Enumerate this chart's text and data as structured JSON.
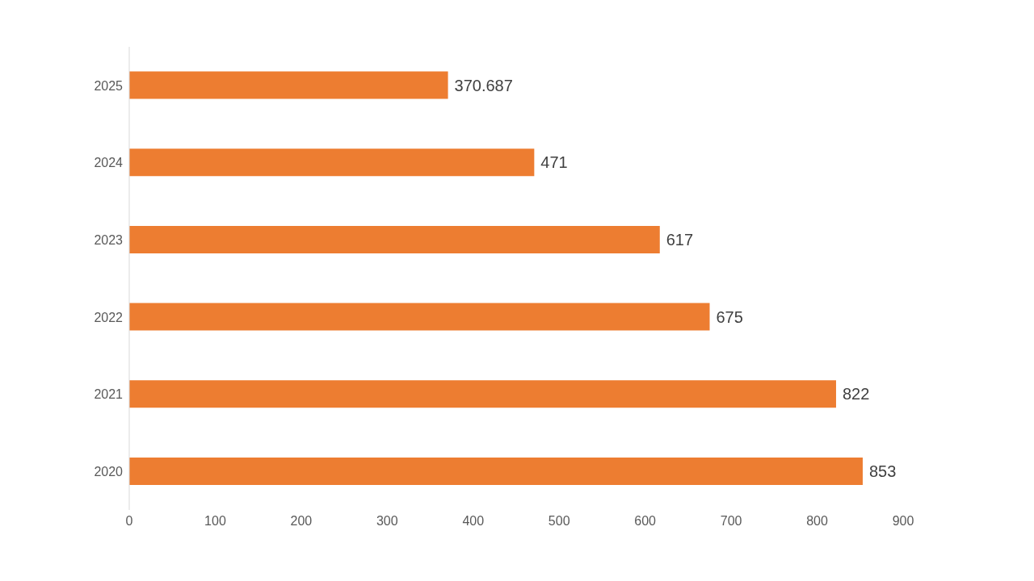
{
  "chart_data": {
    "type": "bar",
    "orientation": "horizontal",
    "categories": [
      "2025",
      "2024",
      "2023",
      "2022",
      "2021",
      "2020"
    ],
    "values": [
      370.687,
      471,
      617,
      675,
      822,
      853
    ],
    "color": "#ed7d31",
    "xlim": [
      0,
      900
    ],
    "xticks": [
      0,
      100,
      200,
      300,
      400,
      500,
      600,
      700,
      800,
      900
    ],
    "grid": false,
    "legend": false,
    "data_labels": true
  }
}
